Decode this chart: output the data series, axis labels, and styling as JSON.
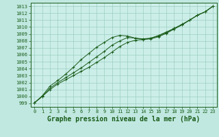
{
  "title": "Graphe pression niveau de la mer (hPa)",
  "xlabel": "Graphe pression niveau de la mer (hPa)",
  "bg_color": "#c0e8e0",
  "plot_bg_color": "#cceee8",
  "line_color": "#1a5c1a",
  "grid_color": "#90c8b8",
  "x_values": [
    0,
    1,
    2,
    3,
    4,
    5,
    6,
    7,
    8,
    9,
    10,
    11,
    12,
    13,
    14,
    15,
    16,
    17,
    18,
    19,
    20,
    21,
    22,
    23
  ],
  "line1": [
    999.1,
    1000.0,
    1001.0,
    1001.8,
    1002.4,
    1003.0,
    1003.6,
    1004.2,
    1004.9,
    1005.6,
    1006.4,
    1007.2,
    1007.8,
    1008.1,
    1008.2,
    1008.4,
    1008.8,
    1009.3,
    1009.8,
    1010.3,
    1011.0,
    1011.7,
    1012.2,
    1013.0
  ],
  "line2": [
    999.1,
    1000.0,
    1001.2,
    1002.0,
    1002.7,
    1003.4,
    1004.1,
    1004.9,
    1005.7,
    1006.5,
    1007.4,
    1008.0,
    1008.5,
    1008.4,
    1008.3,
    1008.4,
    1008.7,
    1009.2,
    1009.8,
    1010.4,
    1011.0,
    1011.7,
    1012.2,
    1013.0
  ],
  "line3": [
    999.1,
    1000.1,
    1001.5,
    1002.3,
    1003.2,
    1004.2,
    1005.3,
    1006.2,
    1007.1,
    1007.8,
    1008.5,
    1008.8,
    1008.7,
    1008.4,
    1008.2,
    1008.3,
    1008.6,
    1009.1,
    1009.7,
    1010.3,
    1011.0,
    1011.7,
    1012.2,
    1013.0
  ],
  "ylim": [
    999,
    1013
  ],
  "xlim": [
    0,
    23
  ],
  "yticks": [
    999,
    1000,
    1001,
    1002,
    1003,
    1004,
    1005,
    1006,
    1007,
    1008,
    1009,
    1010,
    1011,
    1012,
    1013
  ],
  "xticks": [
    0,
    1,
    2,
    3,
    4,
    5,
    6,
    7,
    8,
    9,
    10,
    11,
    12,
    13,
    14,
    15,
    16,
    17,
    18,
    19,
    20,
    21,
    22,
    23
  ],
  "marker": "+",
  "markersize": 3,
  "linewidth": 0.7,
  "tick_fontsize": 5.0,
  "xlabel_fontsize": 7.0
}
